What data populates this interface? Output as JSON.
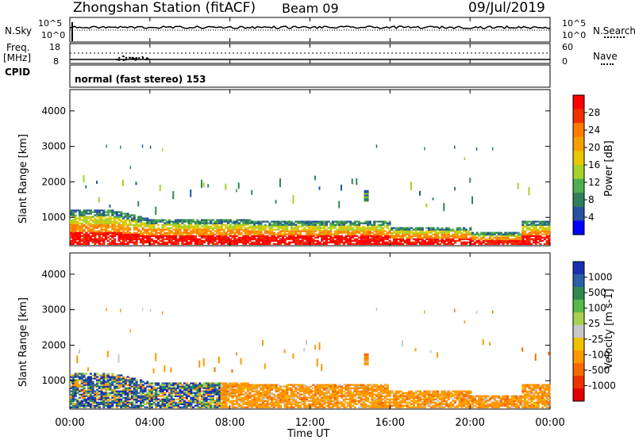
{
  "header": {
    "station": "Zhongshan Station (fitACF)",
    "beam": "Beam 09",
    "date": "09/Jul/2019"
  },
  "top_panel": {
    "left_label": "N.Sky",
    "right_label": "N.Search",
    "left_ticks": [
      "10^5",
      "10^0"
    ],
    "right_ticks": [
      "10^5",
      "10^0"
    ]
  },
  "freq_panel": {
    "left_label_1": "Freq.",
    "left_label_2": "[MHz]",
    "left_ticks": [
      "18",
      "8"
    ],
    "right_ticks": [
      "60",
      "0"
    ],
    "right_label": "Nave"
  },
  "cpid_panel": {
    "label": "CPID",
    "text": "normal (fast stereo) 153"
  },
  "x_axis": {
    "ticks": [
      "00:00",
      "04:00",
      "08:00",
      "12:00",
      "16:00",
      "20:00",
      "00:00"
    ],
    "label": "Time UT"
  },
  "chart_data": [
    {
      "type": "heatmap",
      "name": "power",
      "x_range_hours": [
        0,
        24
      ],
      "ylabel": "Slant Range [km]",
      "yticks": [
        1000,
        2000,
        3000,
        4000
      ],
      "ylim": [
        200,
        4600
      ],
      "colorbar": {
        "label": "Power [dB]",
        "ticks": [
          "28",
          "24",
          "20",
          "16",
          "12",
          "8",
          "4"
        ],
        "colors": [
          "#ff0000",
          "#f03000",
          "#ff7a00",
          "#f5a000",
          "#e8c800",
          "#a6d22c",
          "#4caf50",
          "#2f7f5a",
          "#2850a0",
          "#0000ff"
        ]
      }
    },
    {
      "type": "heatmap",
      "name": "velocity",
      "x_range_hours": [
        0,
        24
      ],
      "ylabel": "Slant Range [km]",
      "yticks": [
        1000,
        2000,
        3000,
        4000
      ],
      "ylim": [
        200,
        4600
      ],
      "colorbar": {
        "label": "Velocity [m s-1]",
        "ticks": [
          "1000",
          "500",
          "100",
          "25",
          "-25",
          "-100",
          "-500",
          "-1000"
        ],
        "colors": [
          "#1a2fb0",
          "#2b5fa8",
          "#2e8a4e",
          "#58b848",
          "#a8d050",
          "#c8c8c8",
          "#f0c000",
          "#ff9800",
          "#f56a00",
          "#f03000",
          "#e00000"
        ]
      }
    }
  ]
}
